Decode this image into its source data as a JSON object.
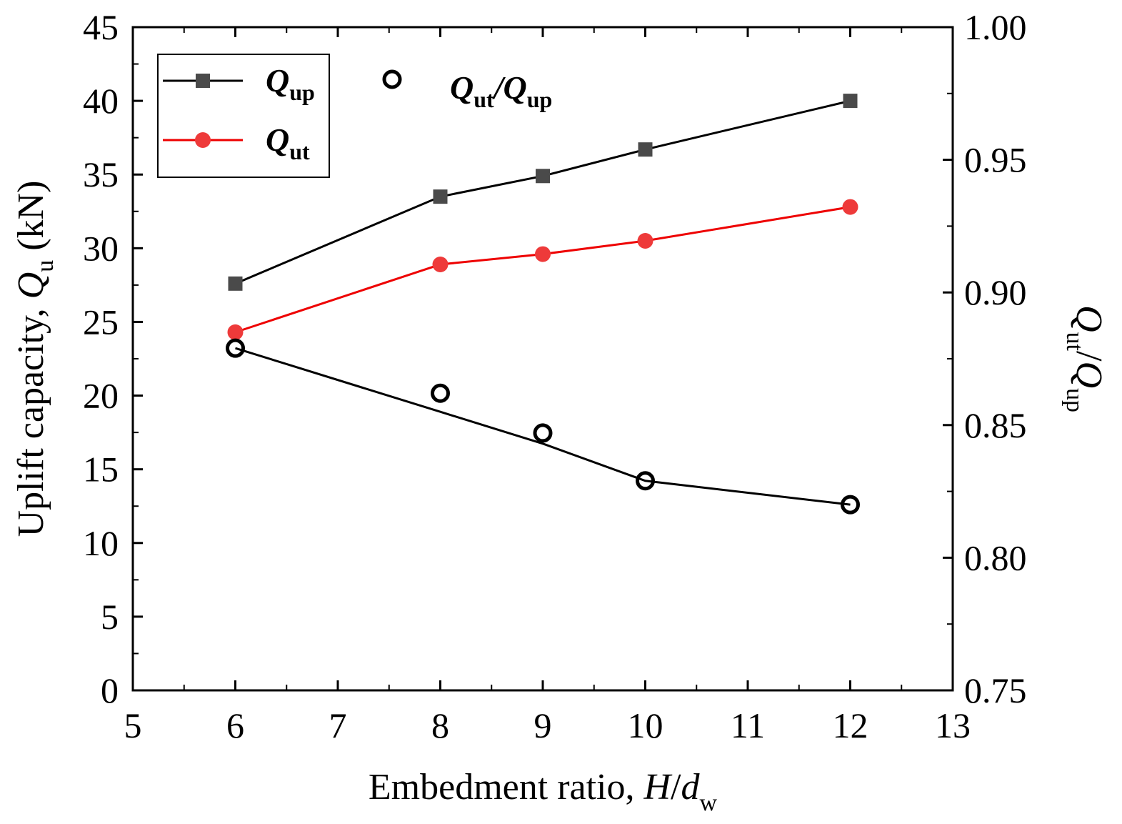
{
  "chart_data": {
    "type": "line",
    "x": [
      6,
      8,
      9,
      10,
      12
    ],
    "xlim": [
      5,
      13
    ],
    "ylim": [
      0,
      45
    ],
    "y2lim": [
      0.75,
      1.0
    ],
    "x_ticks": [
      "5",
      "6",
      "7",
      "8",
      "9",
      "10",
      "11",
      "12",
      "13"
    ],
    "y_ticks": [
      "0",
      "5",
      "10",
      "15",
      "20",
      "25",
      "30",
      "35",
      "40",
      "45"
    ],
    "y2_ticks": [
      "0.75",
      "0.80",
      "0.85",
      "0.90",
      "0.95",
      "1.00"
    ],
    "xlabel": {
      "main": "Embedment ratio, ",
      "var": "H",
      "slash": "/",
      "var2": "d",
      "sub": "w"
    },
    "ylabel": {
      "main": "Uplift capacity, ",
      "var": "Q",
      "sub": "u",
      "unit": " (kN)"
    },
    "y2label": {
      "var": "Q",
      "sub": "ut",
      "slash": "/",
      "var2": "Q",
      "sub2": "up"
    },
    "grid": false,
    "legend_placement": "top-left",
    "series": [
      {
        "name": "Q_up",
        "label_main": "Q",
        "label_sub": "up",
        "axis": "left",
        "marker": "square",
        "color": "#4a4a4a",
        "line_color": "#000000",
        "values": [
          27.6,
          33.5,
          34.9,
          36.7,
          40.0
        ]
      },
      {
        "name": "Q_ut",
        "label_main": "Q",
        "label_sub": "ut",
        "axis": "left",
        "marker": "circle",
        "color": "#ee3a3a",
        "line_color": "#ee0000",
        "values": [
          24.3,
          28.9,
          29.6,
          30.5,
          32.8
        ]
      },
      {
        "name": "Q_ut/Q_up",
        "label_main": "Q",
        "label_sub": "ut",
        "label_slash": "/",
        "label_main2": "Q",
        "label_sub2": "up",
        "axis": "right",
        "marker": "open-circle",
        "color": "#000000",
        "values": [
          0.879,
          0.862,
          0.847,
          0.829,
          0.82
        ],
        "fit_line": [
          0.879,
          0.855,
          0.843,
          0.829,
          0.82
        ]
      }
    ]
  }
}
